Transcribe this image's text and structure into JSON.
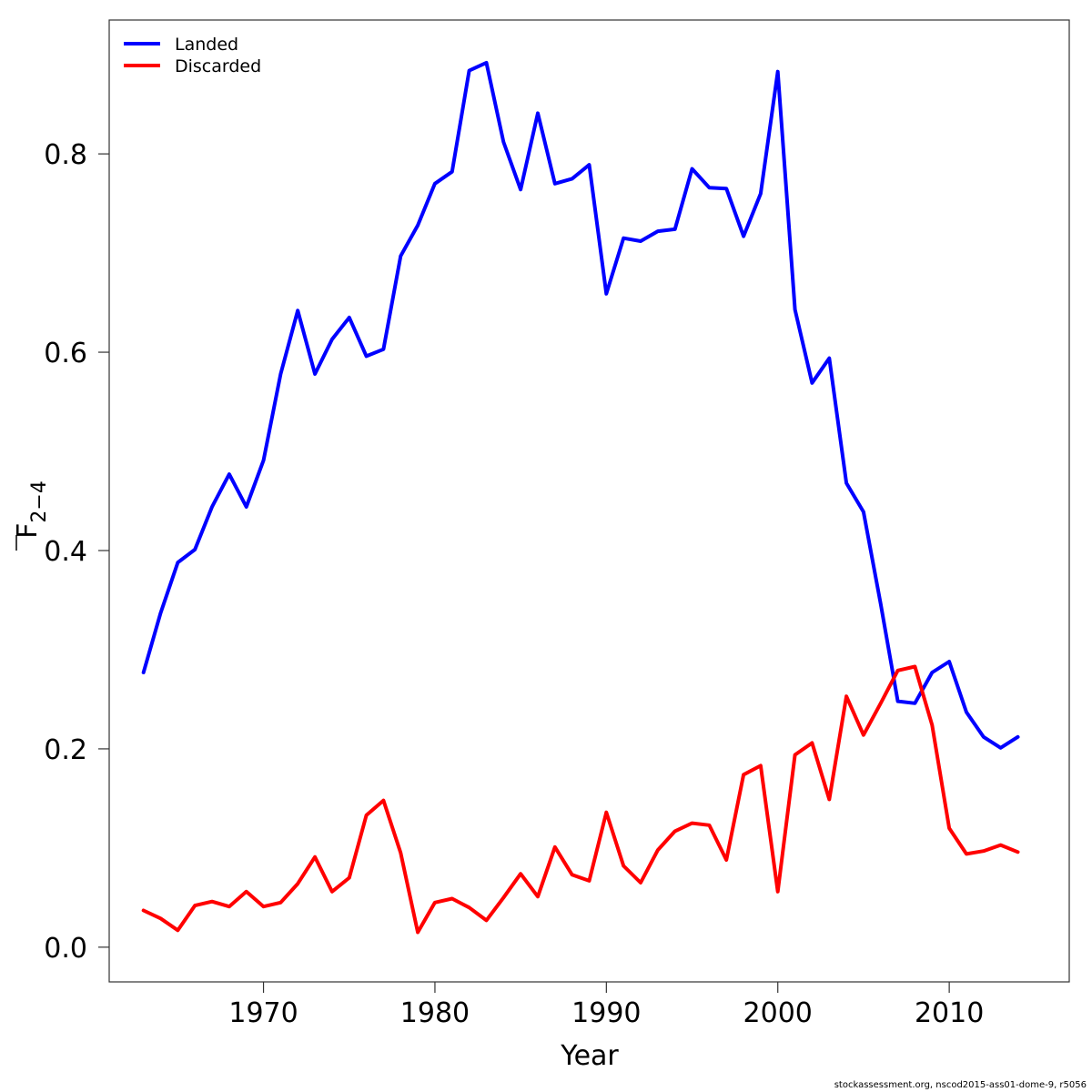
{
  "chart_data": {
    "type": "line",
    "xlabel": "Year",
    "ylabel": {
      "base": "F",
      "subscript": "2−4",
      "overline": true
    },
    "xlim": [
      1961,
      2017
    ],
    "ylim": [
      -0.035,
      0.935
    ],
    "xticks": [
      1970,
      1980,
      1990,
      2000,
      2010
    ],
    "xtick_labels": [
      "1970",
      "1980",
      "1990",
      "2000",
      "2010"
    ],
    "yticks": [
      0.0,
      0.2,
      0.4,
      0.6,
      0.8
    ],
    "ytick_labels": [
      "0.0",
      "0.2",
      "0.4",
      "0.6",
      "0.8"
    ],
    "grid": false,
    "legend_position": "top-left",
    "x": [
      1963,
      1964,
      1965,
      1966,
      1967,
      1968,
      1969,
      1970,
      1971,
      1972,
      1973,
      1974,
      1975,
      1976,
      1977,
      1978,
      1979,
      1980,
      1981,
      1982,
      1983,
      1984,
      1985,
      1986,
      1987,
      1988,
      1989,
      1990,
      1991,
      1992,
      1993,
      1994,
      1995,
      1996,
      1997,
      1998,
      1999,
      2000,
      2001,
      2002,
      2003,
      2004,
      2005,
      2006,
      2007,
      2008,
      2009,
      2010,
      2011,
      2012,
      2013,
      2014
    ],
    "series": [
      {
        "name": "Landed",
        "color": "#0000ff",
        "values": [
          0.277,
          0.337,
          0.388,
          0.401,
          0.444,
          0.477,
          0.444,
          0.491,
          0.578,
          0.642,
          0.578,
          0.613,
          0.635,
          0.596,
          0.603,
          0.697,
          0.728,
          0.77,
          0.782,
          0.884,
          0.892,
          0.812,
          0.764,
          0.841,
          0.77,
          0.775,
          0.789,
          0.659,
          0.715,
          0.712,
          0.722,
          0.724,
          0.785,
          0.766,
          0.765,
          0.717,
          0.76,
          0.883,
          0.643,
          0.569,
          0.594,
          0.468,
          0.439,
          0.346,
          0.248,
          0.246,
          0.277,
          0.288,
          0.237,
          0.212,
          0.201,
          0.212
        ]
      },
      {
        "name": "Discarded",
        "color": "#ff0000",
        "values": [
          0.037,
          0.029,
          0.017,
          0.042,
          0.046,
          0.041,
          0.056,
          0.041,
          0.045,
          0.064,
          0.091,
          0.056,
          0.07,
          0.133,
          0.148,
          0.095,
          0.015,
          0.045,
          0.049,
          0.04,
          0.027,
          0.05,
          0.074,
          0.051,
          0.101,
          0.073,
          0.067,
          0.136,
          0.082,
          0.065,
          0.098,
          0.117,
          0.125,
          0.123,
          0.088,
          0.174,
          0.183,
          0.056,
          0.194,
          0.206,
          0.149,
          0.253,
          0.214,
          0.246,
          0.279,
          0.283,
          0.224,
          0.12,
          0.094,
          0.097,
          0.103,
          0.096
        ]
      }
    ]
  },
  "footer": "stockassessment.org, nscod2015-ass01-dome-9, r5056"
}
